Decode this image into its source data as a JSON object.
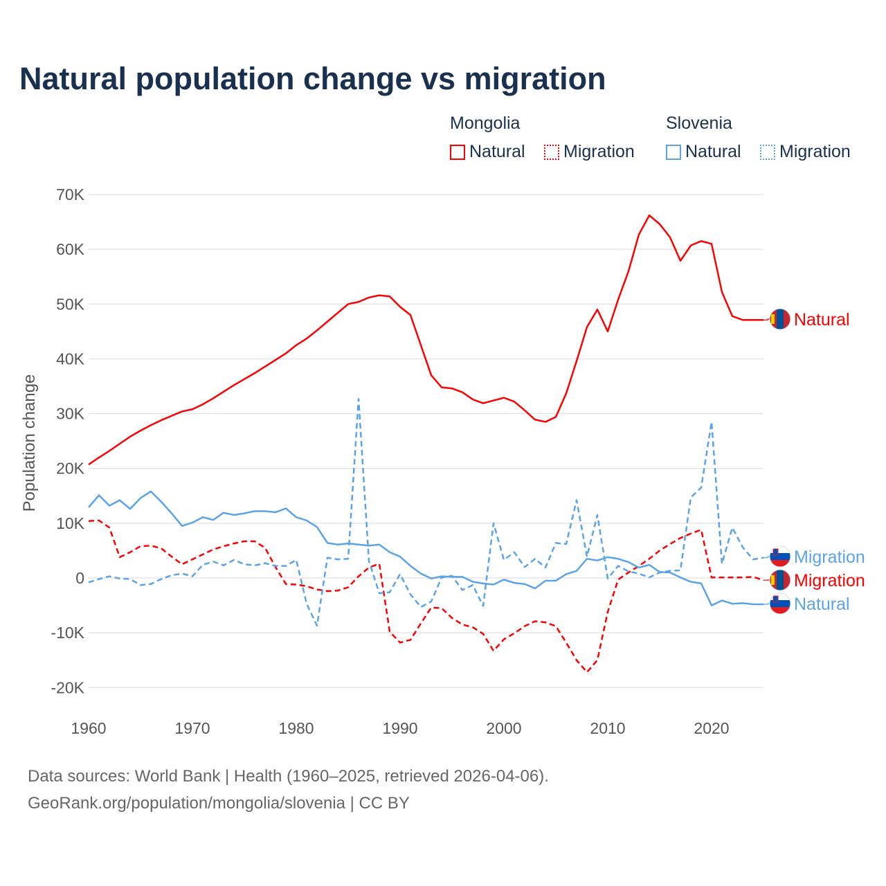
{
  "chart_data": {
    "type": "line",
    "title": "Natural population change vs migration",
    "xlabel": "",
    "ylabel": "Population change",
    "ylim": [
      -20000,
      70000
    ],
    "xlim": [
      1960,
      2025
    ],
    "grid": true,
    "yticks": [
      -20000,
      -10000,
      0,
      10000,
      20000,
      30000,
      40000,
      50000,
      60000,
      70000
    ],
    "ytick_labels": [
      "-20K",
      "-10K",
      "0",
      "10K",
      "20K",
      "30K",
      "40K",
      "50K",
      "60K",
      "70K"
    ],
    "xticks": [
      1960,
      1970,
      1980,
      1990,
      2000,
      2010,
      2020
    ],
    "xtick_labels": [
      "1960",
      "1970",
      "1980",
      "1990",
      "2000",
      "2010",
      "2020"
    ],
    "x_start": 1960,
    "value_scale": 1000,
    "legend_position": "top-right",
    "legend": {
      "groups": [
        {
          "country": "Mongolia",
          "items": [
            "Natural",
            "Migration"
          ]
        },
        {
          "country": "Slovenia",
          "items": [
            "Natural",
            "Migration"
          ]
        }
      ]
    },
    "series": [
      {
        "name": "Mongolia Natural",
        "country": "Mongolia",
        "kind": "Natural",
        "end_label": "Natural",
        "color": "#ff0000",
        "dash": false,
        "flag": "mongolia-flag",
        "values": [
          20.7,
          22.0,
          23.2,
          24.5,
          25.8,
          26.9,
          27.9,
          28.8,
          29.6,
          30.4,
          30.8,
          31.7,
          32.8,
          34.0,
          35.2,
          36.3,
          37.4,
          38.6,
          39.8,
          41.0,
          42.5,
          43.7,
          45.2,
          46.8,
          48.4,
          50.0,
          50.4,
          51.2,
          51.6,
          51.4,
          49.5,
          48.0,
          42.5,
          37.0,
          34.8,
          34.6,
          33.9,
          32.6,
          31.9,
          32.4,
          32.9,
          32.2,
          30.6,
          28.9,
          28.5,
          29.4,
          33.7,
          39.6,
          45.8,
          49.0,
          45.0,
          50.8,
          56.0,
          62.7,
          66.2,
          64.6,
          62.2,
          57.9,
          60.7,
          61.5,
          61.0,
          52.2,
          47.8,
          47.1,
          47.1,
          47.1
        ]
      },
      {
        "name": "Mongolia Migration",
        "country": "Mongolia",
        "kind": "Migration",
        "end_label": "Migration",
        "color": "#ff0000",
        "dash": true,
        "flag": "mongolia-flag",
        "values": [
          10.4,
          10.5,
          9.2,
          3.8,
          4.7,
          5.8,
          5.9,
          5.4,
          3.9,
          2.5,
          3.4,
          4.3,
          5.2,
          5.8,
          6.3,
          6.7,
          6.7,
          5.5,
          2.0,
          -1.1,
          -1.2,
          -1.5,
          -2.1,
          -2.4,
          -2.3,
          -1.7,
          0.3,
          1.9,
          2.6,
          -9.8,
          -11.8,
          -11.3,
          -8.3,
          -5.4,
          -5.5,
          -7.3,
          -8.5,
          -9.0,
          -10.2,
          -13.3,
          -11.2,
          -10.1,
          -8.8,
          -7.9,
          -8.1,
          -8.8,
          -11.8,
          -15.0,
          -17.2,
          -15.0,
          -6.2,
          -0.3,
          1.0,
          2.2,
          3.5,
          5.0,
          6.2,
          7.3,
          8.1,
          8.8,
          0.1,
          0.1,
          0.1,
          0.1,
          0.2,
          -0.4
        ]
      },
      {
        "name": "Slovenia Natural",
        "country": "Slovenia",
        "kind": "Natural",
        "end_label": "Natural",
        "color": "#5ba3e8",
        "dash": false,
        "flag": "slovenia-flag",
        "values": [
          12.9,
          15.1,
          13.2,
          14.2,
          12.6,
          14.6,
          15.8,
          13.9,
          11.8,
          9.5,
          10.1,
          11.1,
          10.6,
          11.9,
          11.5,
          11.8,
          12.2,
          12.2,
          12.0,
          12.7,
          11.1,
          10.5,
          9.3,
          6.4,
          6.1,
          6.3,
          6.1,
          5.9,
          6.1,
          4.7,
          3.9,
          2.2,
          0.8,
          -0.1,
          0.3,
          0.2,
          0.2,
          -0.7,
          -1.0,
          -1.2,
          -0.3,
          -0.9,
          -1.1,
          -1.9,
          -0.5,
          -0.5,
          0.7,
          1.3,
          3.5,
          3.2,
          3.8,
          3.5,
          2.9,
          1.9,
          2.4,
          1.1,
          1.0,
          0.1,
          -0.7,
          -1.0,
          -5.0,
          -4.1,
          -4.7,
          -4.6,
          -4.8,
          -4.8
        ]
      },
      {
        "name": "Slovenia Migration",
        "country": "Slovenia",
        "kind": "Migration",
        "end_label": "Migration",
        "color": "#5ba3e8",
        "dash": true,
        "flag": "slovenia-flag",
        "values": [
          -0.8,
          -0.2,
          0.3,
          -0.1,
          -0.2,
          -1.3,
          -1.1,
          -0.2,
          0.5,
          0.8,
          0.3,
          2.4,
          3.0,
          2.3,
          3.3,
          2.5,
          2.3,
          2.7,
          2.2,
          2.2,
          3.3,
          -4.7,
          -8.7,
          3.7,
          3.4,
          3.5,
          32.7,
          3.1,
          -2.8,
          -2.6,
          0.7,
          -3.0,
          -5.3,
          -4.3,
          0.1,
          0.4,
          -2.2,
          -1.3,
          -5.1,
          10.0,
          3.3,
          4.7,
          2.0,
          3.5,
          1.9,
          6.4,
          6.2,
          14.2,
          3.9,
          11.5,
          -0.1,
          2.2,
          1.2,
          0.8,
          0.1,
          1.0,
          1.3,
          1.4,
          14.7,
          16.5,
          28.5,
          2.6,
          9.2,
          5.6,
          3.4,
          3.7
        ]
      }
    ]
  },
  "footer": {
    "line1": "Data sources: World Bank | Health (1960–2025, retrieved 2026-04-06).",
    "line2": "GeoRank.org/population/mongolia/slovenia | CC BY"
  }
}
